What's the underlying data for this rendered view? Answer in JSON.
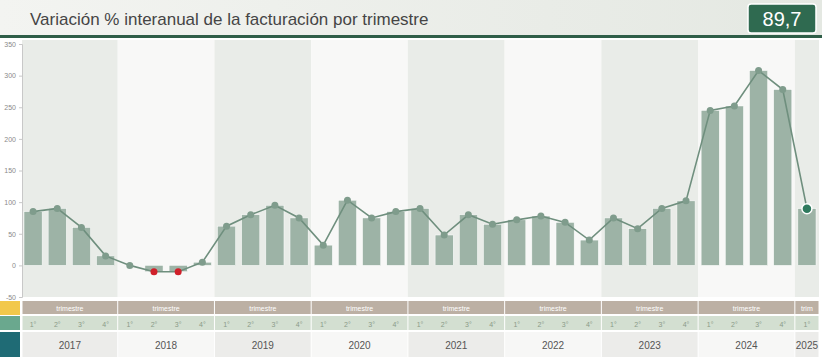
{
  "chart_data": {
    "type": "bar",
    "title": "Variación % interanual de la facturación por trimestre",
    "annotations": [
      {
        "text": "89,7"
      }
    ],
    "categories": [
      "1°",
      "2°",
      "3°",
      "4°",
      "1°",
      "2°",
      "3°",
      "4°",
      "1°",
      "2°",
      "3°",
      "4°",
      "1°",
      "2°",
      "3°",
      "4°",
      "1°",
      "2°",
      "3°",
      "4°",
      "1°",
      "2°",
      "3°",
      "4°",
      "1°",
      "2°",
      "3°",
      "4°",
      "1°",
      "2°",
      "3°",
      "4°",
      "1°"
    ],
    "values": [
      85,
      90,
      60,
      15,
      0,
      -10,
      -10,
      5,
      62,
      80,
      95,
      75,
      32,
      103,
      75,
      85,
      90,
      48,
      80,
      65,
      72,
      78,
      68,
      40,
      75,
      58,
      90,
      102,
      245,
      252,
      308,
      278,
      89.7
    ],
    "groups": [
      {
        "label": "2017",
        "header": "trimestre",
        "size": 4
      },
      {
        "label": "2018",
        "header": "trimestre",
        "size": 4
      },
      {
        "label": "2019",
        "header": "trimestre",
        "size": 4
      },
      {
        "label": "2020",
        "header": "trimestre",
        "size": 4
      },
      {
        "label": "2021",
        "header": "trimestre",
        "size": 4
      },
      {
        "label": "2022",
        "header": "trimestre",
        "size": 4
      },
      {
        "label": "2023",
        "header": "trimestre",
        "size": 4
      },
      {
        "label": "2024",
        "header": "trimestre",
        "size": 4
      },
      {
        "label": "2025",
        "header": "trim",
        "size": 1
      }
    ],
    "color": "#9db3a6",
    "marker": "circle",
    "line_style": "solid",
    "ylim": [
      -50,
      350
    ],
    "yticks": [
      -50,
      0,
      50,
      100,
      150,
      200,
      250,
      300,
      350
    ],
    "grid": false
  }
}
